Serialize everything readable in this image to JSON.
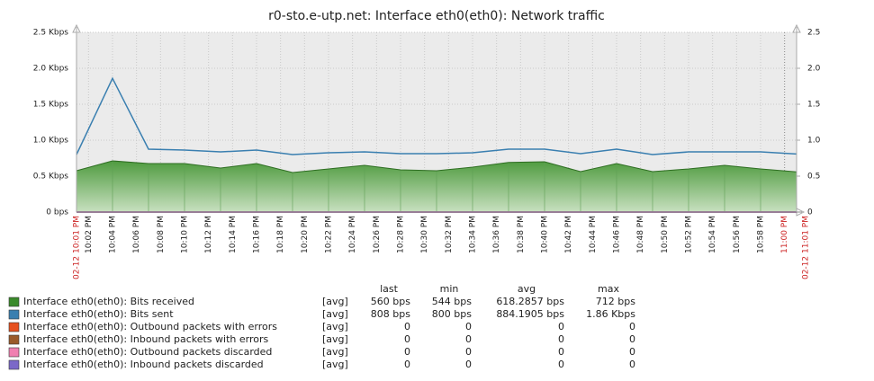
{
  "chart_data": {
    "type": "line",
    "title": "r0-sto.e-utp.net: Interface eth0(eth0): Network traffic",
    "x": [
      "10:01 PM",
      "10:04 PM",
      "10:07 PM",
      "10:10 PM",
      "10:13 PM",
      "10:16 PM",
      "10:19 PM",
      "10:22 PM",
      "10:25 PM",
      "10:28 PM",
      "10:31 PM",
      "10:34 PM",
      "10:37 PM",
      "10:40 PM",
      "10:43 PM",
      "10:46 PM",
      "10:49 PM",
      "10:52 PM",
      "10:55 PM",
      "10:58 PM",
      "11:01 PM"
    ],
    "xlim": [
      "02-12 10:01 PM",
      "02-12 11:01 PM"
    ],
    "xticks": [
      "10:02 PM",
      "10:04 PM",
      "10:06 PM",
      "10:08 PM",
      "10:10 PM",
      "10:12 PM",
      "10:14 PM",
      "10:16 PM",
      "10:18 PM",
      "10:20 PM",
      "10:22 PM",
      "10:24 PM",
      "10:26 PM",
      "10:28 PM",
      "10:30 PM",
      "10:32 PM",
      "10:34 PM",
      "10:36 PM",
      "10:38 PM",
      "10:40 PM",
      "10:42 PM",
      "10:44 PM",
      "10:46 PM",
      "10:48 PM",
      "10:50 PM",
      "10:52 PM",
      "10:54 PM",
      "10:56 PM",
      "10:58 PM",
      "11:00 PM"
    ],
    "ylim": [
      0,
      2500
    ],
    "yticks": [
      {
        "value": 0,
        "label": "0 bps"
      },
      {
        "value": 500,
        "label": "0.5 Kbps"
      },
      {
        "value": 1000,
        "label": "1.0 Kbps"
      },
      {
        "value": 1500,
        "label": "1.5 Kbps"
      },
      {
        "value": 2000,
        "label": "2.0 Kbps"
      },
      {
        "value": 2500,
        "label": "2.5 Kbps"
      }
    ],
    "y2lim": [
      0,
      2.5
    ],
    "y2ticks": [
      0,
      {
        "value": 0.5,
        "label": "0.5"
      },
      {
        "value": 1,
        "label": "1.0"
      },
      {
        "value": 1.5,
        "label": "1.5"
      },
      {
        "value": 2,
        "label": "2.0"
      },
      {
        "value": 2.5,
        "label": "2.5"
      }
    ],
    "grid": true,
    "legend_header": [
      "last",
      "min",
      "avg",
      "max"
    ],
    "series": [
      {
        "name": "Interface eth0(eth0): Bits received",
        "color": "#3a8a2a",
        "fill": true,
        "function": "[avg]",
        "last": "560 bps",
        "min": "544 bps",
        "avg": "618.2857 bps",
        "max": "712 bps",
        "values": [
          575,
          712,
          675,
          675,
          612,
          675,
          550,
          600,
          650,
          587,
          575,
          625,
          690,
          700,
          562,
          675,
          562,
          600,
          650,
          600,
          560
        ]
      },
      {
        "name": "Interface eth0(eth0): Bits sent",
        "color": "#3a7fb0",
        "function": "[avg]",
        "last": "808 bps",
        "min": "800 bps",
        "avg": "884.1905 bps",
        "max": "1.86 Kbps",
        "values": [
          800,
          1860,
          875,
          862,
          837,
          862,
          800,
          825,
          837,
          812,
          812,
          825,
          875,
          875,
          812,
          875,
          800,
          837,
          837,
          837,
          808
        ]
      },
      {
        "name": "Interface eth0(eth0): Outbound packets with errors",
        "color": "#e6501e",
        "function": "[avg]",
        "last": "0",
        "min": "0",
        "avg": "0",
        "max": "0",
        "values": [
          0,
          0,
          0,
          0,
          0,
          0,
          0,
          0,
          0,
          0,
          0,
          0,
          0,
          0,
          0,
          0,
          0,
          0,
          0,
          0,
          0
        ]
      },
      {
        "name": "Interface eth0(eth0): Inbound packets with errors",
        "color": "#9a5a2a",
        "function": "[avg]",
        "last": "0",
        "min": "0",
        "avg": "0",
        "max": "0",
        "values": [
          0,
          0,
          0,
          0,
          0,
          0,
          0,
          0,
          0,
          0,
          0,
          0,
          0,
          0,
          0,
          0,
          0,
          0,
          0,
          0,
          0
        ]
      },
      {
        "name": "Interface eth0(eth0): Outbound packets discarded",
        "color": "#f080b0",
        "function": "[avg]",
        "last": "0",
        "min": "0",
        "avg": "0",
        "max": "0",
        "values": [
          0,
          0,
          0,
          0,
          0,
          0,
          0,
          0,
          0,
          0,
          0,
          0,
          0,
          0,
          0,
          0,
          0,
          0,
          0,
          0,
          0
        ]
      },
      {
        "name": "Interface eth0(eth0): Inbound packets discarded",
        "color": "#7b68c8",
        "function": "[avg]",
        "last": "0",
        "min": "0",
        "avg": "0",
        "max": "0",
        "values": [
          0,
          0,
          0,
          0,
          0,
          0,
          0,
          0,
          0,
          0,
          0,
          0,
          0,
          0,
          0,
          0,
          0,
          0,
          0,
          0,
          0
        ]
      }
    ]
  }
}
